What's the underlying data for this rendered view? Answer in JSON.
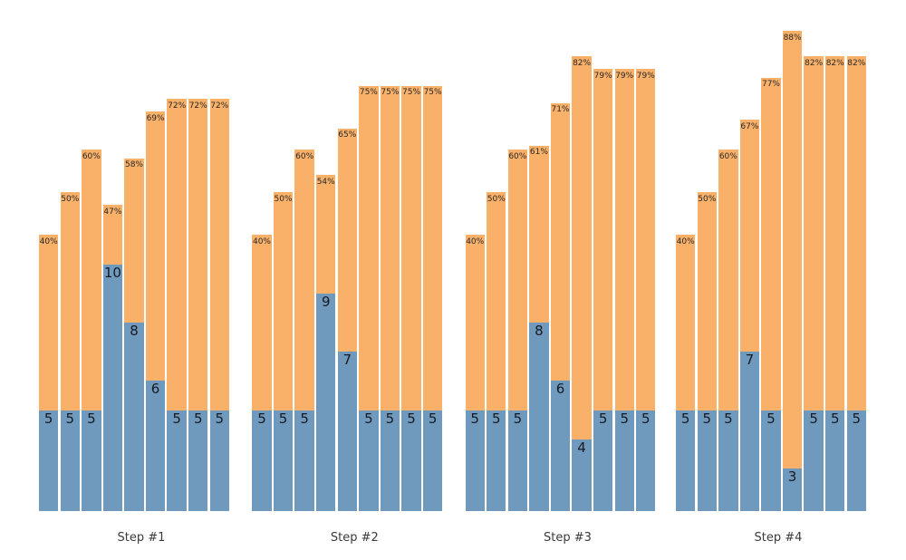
{
  "chart_data": {
    "type": "bar",
    "stacked": true,
    "grid": false,
    "legend": "none",
    "axes_visible": false,
    "colors": {
      "count_segment": "#6f9abe",
      "percent_segment": "#f9b16a",
      "count_label_text": "#171a21",
      "percent_label_text": "#262626",
      "group_label_text": "#3a3a3a",
      "background": "#ffffff"
    },
    "percent_suffix": "%",
    "groups": [
      {
        "label": "Step #1",
        "counts": [
          5,
          5,
          5,
          10,
          8,
          6,
          5,
          5,
          5
        ],
        "percents": [
          40,
          50,
          60,
          47,
          58,
          69,
          72,
          72,
          72
        ]
      },
      {
        "label": "Step #2",
        "counts": [
          5,
          5,
          5,
          9,
          7,
          5,
          5,
          5,
          5
        ],
        "percents": [
          40,
          50,
          60,
          54,
          65,
          75,
          75,
          75,
          75
        ]
      },
      {
        "label": "Step #3",
        "counts": [
          5,
          5,
          5,
          8,
          6,
          4,
          5,
          5,
          5
        ],
        "percents": [
          40,
          50,
          60,
          61,
          71,
          82,
          79,
          79,
          79
        ]
      },
      {
        "label": "Step #4",
        "counts": [
          5,
          5,
          5,
          7,
          5,
          3,
          5,
          5,
          5
        ],
        "percents": [
          40,
          50,
          60,
          67,
          77,
          88,
          82,
          82,
          82
        ]
      }
    ]
  }
}
